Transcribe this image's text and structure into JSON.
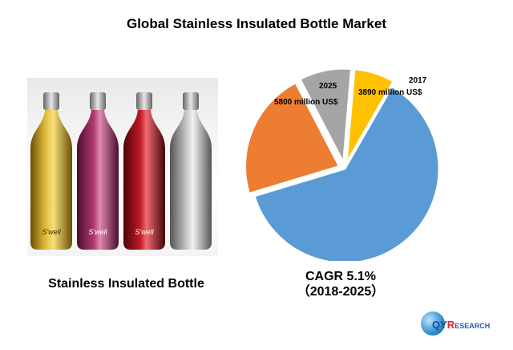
{
  "title": "Global Stainless Insulated Bottle Market",
  "product_label": "Stainless Insulated Bottle",
  "bottle_brand": "S'well",
  "cagr": {
    "line1": "CAGR 5.1%",
    "line2": "（2018-2025）"
  },
  "logo": {
    "q": "Q",
    "y": "Y",
    "r": "R",
    "rest": "ESEARCH"
  },
  "colors": {
    "blue": "#5b9bd5",
    "orange": "#ed7d31",
    "gray": "#a5a5a5",
    "gold": "#ffc000"
  },
  "chart_data": {
    "type": "pie",
    "title": "",
    "series": [
      {
        "name": "",
        "values": [
          62,
          22,
          9,
          7
        ],
        "colors": [
          "#5b9bd5",
          "#ed7d31",
          "#a5a5a5",
          "#ffc000"
        ]
      }
    ],
    "annotations": [
      {
        "year": "2017",
        "value": "3890 million US$"
      },
      {
        "year": "2025",
        "value": "5800 million US$"
      }
    ]
  }
}
